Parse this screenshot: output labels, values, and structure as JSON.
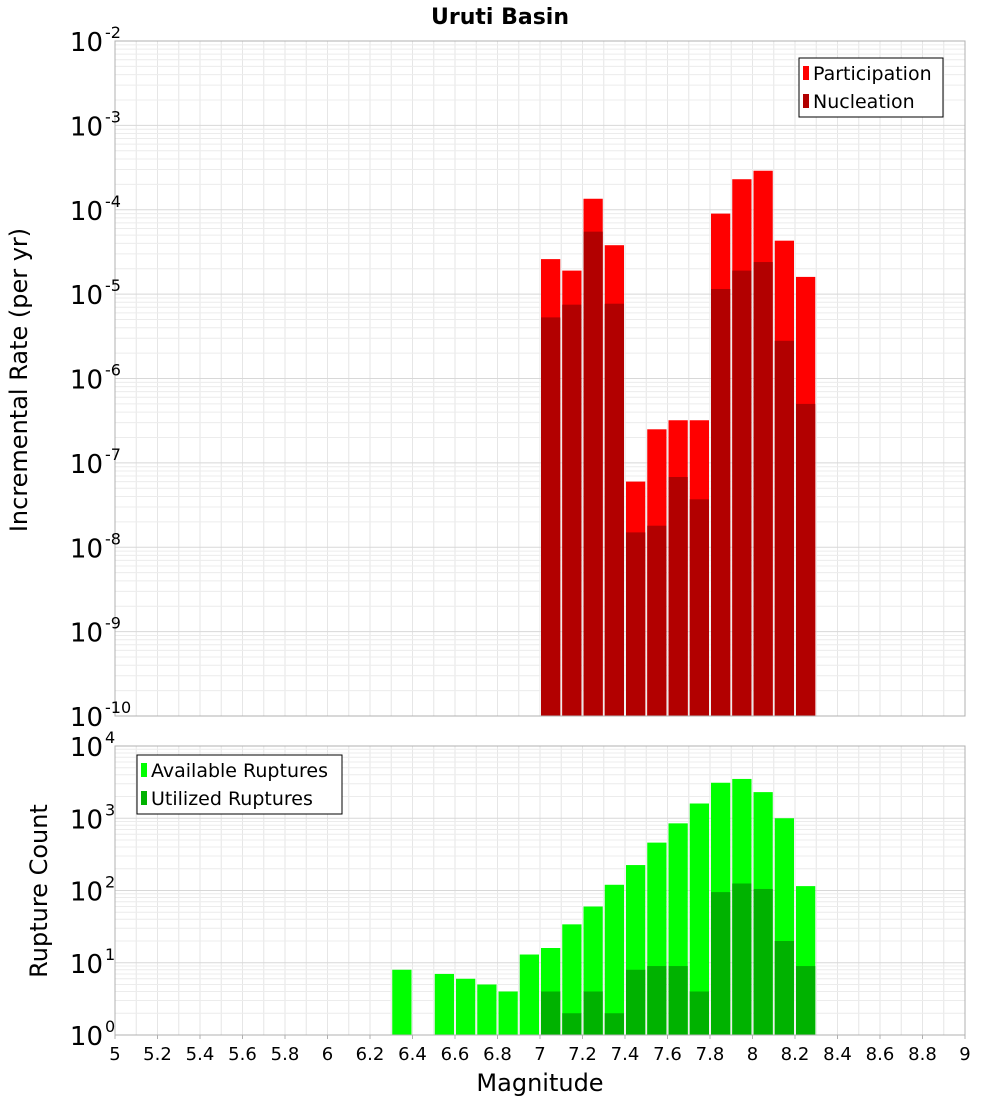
{
  "chart_data": [
    {
      "type": "bar",
      "title": "Uruti Basin",
      "ylabel": "Incremental Rate (per yr)",
      "xlabel": "",
      "xlim": [
        5,
        9
      ],
      "yscale": "log",
      "ylim_exp": [
        -10,
        -2
      ],
      "grid": true,
      "legend_position": "top-right",
      "x": [
        7.05,
        7.15,
        7.25,
        7.35,
        7.45,
        7.55,
        7.65,
        7.75,
        7.85,
        7.95,
        8.05,
        8.15,
        8.25
      ],
      "series": [
        {
          "name": "Participation",
          "color": "#ff0000",
          "values": [
            2.6e-05,
            1.9e-05,
            0.000135,
            3.8e-05,
            6e-08,
            2.5e-07,
            3.2e-07,
            3.2e-07,
            9e-05,
            0.00023,
            0.00029,
            4.3e-05,
            1.6e-05
          ]
        },
        {
          "name": "Nucleation",
          "color": "#b20000",
          "values": [
            5.3e-06,
            7.5e-06,
            5.5e-05,
            7.7e-06,
            1.5e-08,
            1.8e-08,
            6.8e-08,
            3.7e-08,
            1.15e-05,
            1.9e-05,
            2.4e-05,
            2.8e-06,
            5e-07
          ]
        }
      ]
    },
    {
      "type": "bar",
      "title": "",
      "ylabel": "Rupture Count",
      "xlabel": "Magnitude",
      "xlim": [
        5,
        9
      ],
      "yscale": "log",
      "ylim_exp": [
        0,
        4
      ],
      "grid": true,
      "legend_position": "top-left",
      "xticks": [
        "5",
        "5.2",
        "5.4",
        "5.6",
        "5.8",
        "6",
        "6.2",
        "6.4",
        "6.6",
        "6.8",
        "7",
        "7.2",
        "7.4",
        "7.6",
        "7.8",
        "8",
        "8.2",
        "8.4",
        "8.6",
        "8.8",
        "9"
      ],
      "x": [
        6.35,
        6.55,
        6.65,
        6.75,
        6.85,
        6.95,
        7.05,
        7.15,
        7.25,
        7.35,
        7.45,
        7.55,
        7.65,
        7.75,
        7.85,
        7.95,
        8.05,
        8.15,
        8.25
      ],
      "series": [
        {
          "name": "Available Ruptures",
          "color": "#00ff00",
          "values": [
            8,
            7,
            6,
            5,
            4,
            13,
            16,
            34,
            60,
            120,
            225,
            460,
            850,
            1600,
            3100,
            3500,
            2300,
            1000,
            115
          ]
        },
        {
          "name": "Utilized Ruptures",
          "color": "#00b200",
          "values": [
            0,
            0,
            0,
            0,
            0,
            0,
            4,
            2,
            4,
            2,
            8,
            9,
            9,
            4,
            95,
            125,
            105,
            20,
            9
          ]
        }
      ]
    }
  ]
}
